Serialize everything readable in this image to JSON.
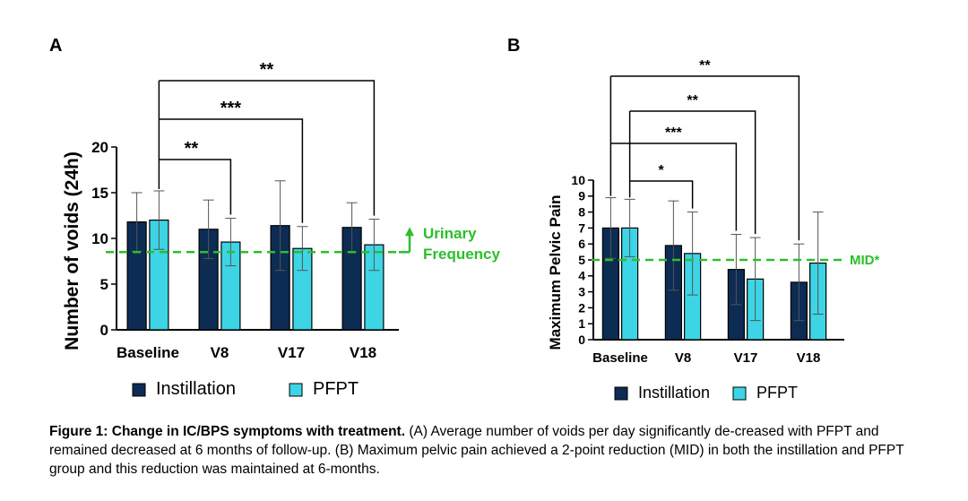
{
  "colors": {
    "instillation": "#0d2c54",
    "pfpt": "#3dd4e6",
    "threshold": "#2bbf2b"
  },
  "chart_data": [
    {
      "panel": "A",
      "type": "bar",
      "ylabel": "Number of voids (24h)",
      "ylim": [
        0,
        20
      ],
      "yticks": [
        0,
        5,
        10,
        15,
        20
      ],
      "categories": [
        "Baseline",
        "V8",
        "V17",
        "V18"
      ],
      "series": [
        {
          "name": "Instillation",
          "values": [
            11.8,
            11.0,
            11.4,
            11.2
          ],
          "error": [
            3.2,
            3.2,
            4.9,
            2.7
          ]
        },
        {
          "name": "PFPT",
          "values": [
            12.0,
            9.6,
            8.9,
            9.3
          ],
          "error": [
            3.2,
            2.6,
            2.4,
            2.8
          ]
        }
      ],
      "threshold": {
        "value": 8.5,
        "label_line1": "Urinary",
        "label_line2": "Frequency"
      },
      "significance": [
        {
          "to": "V8",
          "label": "**"
        },
        {
          "to": "V17",
          "label": "***"
        },
        {
          "to": "V18",
          "label": "**"
        }
      ],
      "legend": [
        "Instillation",
        "PFPT"
      ]
    },
    {
      "panel": "B",
      "type": "bar",
      "ylabel": "Maximum Pelvic Pain",
      "ylim": [
        0,
        10
      ],
      "yticks": [
        0,
        1,
        2,
        3,
        4,
        5,
        6,
        7,
        8,
        9,
        10
      ],
      "categories": [
        "Baseline",
        "V8",
        "V17",
        "V18"
      ],
      "series": [
        {
          "name": "Instillation",
          "values": [
            7.0,
            5.9,
            4.4,
            3.6
          ],
          "error": [
            1.9,
            2.8,
            2.2,
            2.4
          ]
        },
        {
          "name": "PFPT",
          "values": [
            7.0,
            5.4,
            3.8,
            4.8
          ],
          "error": [
            1.8,
            2.6,
            2.6,
            3.2
          ]
        }
      ],
      "threshold": {
        "value": 5.0,
        "label_line1": "MID*",
        "label_line2": ""
      },
      "significance": [
        {
          "to": "V8 PFPT",
          "label": "*"
        },
        {
          "to": "V17 Instillation",
          "label": "***"
        },
        {
          "to": "V17 PFPT",
          "label": "**"
        },
        {
          "to": "V18 Instillation",
          "label": "**"
        }
      ],
      "legend": [
        "Instillation",
        "PFPT"
      ]
    }
  ],
  "caption": {
    "bold": "Figure 1: Change in IC/BPS symptoms with treatment.",
    "text": "  (A) Average number of voids per day significantly de-creased with PFPT and remained decreased at 6 months of follow-up.  (B) Maximum pelvic pain achieved a 2-point reduction (MID) in both the instillation and PFPT group and this reduction was maintained at 6-months."
  }
}
